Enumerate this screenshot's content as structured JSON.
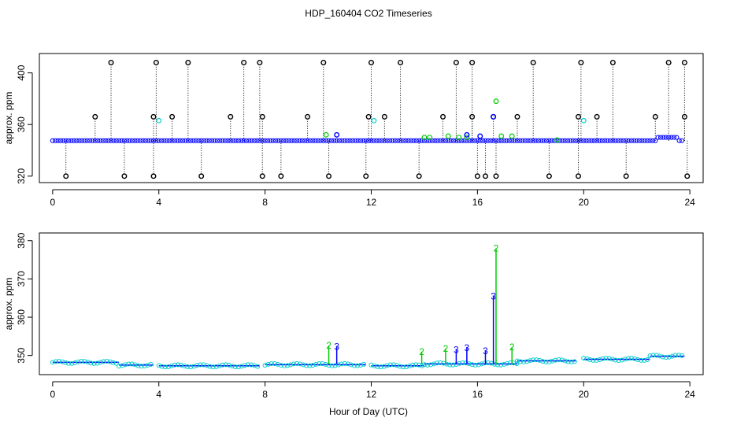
{
  "title": "HDP_160404  CO2 Timeseries",
  "xlabel": "Hour of Day (UTC)",
  "colors": {
    "black": "#000000",
    "blue": "#0000ff",
    "green": "#00cc00",
    "cyan": "#00cccc"
  },
  "chart_data": [
    {
      "type": "scatter",
      "panel": "top",
      "ylabel": "approx. ppm",
      "xlim": [
        -0.5,
        24.5
      ],
      "ylim": [
        315,
        415
      ],
      "x_ticks": [
        "0",
        "4",
        "8",
        "12",
        "16",
        "20",
        "24"
      ],
      "y_ticks": [
        "320",
        "360",
        "400"
      ],
      "base_series": {
        "name": "",
        "color": "#0000ff",
        "x_start": 0.0,
        "x_end": 23.8,
        "value": 347.5
      },
      "high_spikes": [
        {
          "x": 2.2,
          "y": 408
        },
        {
          "x": 3.9,
          "y": 408
        },
        {
          "x": 5.1,
          "y": 408
        },
        {
          "x": 7.2,
          "y": 408
        },
        {
          "x": 7.8,
          "y": 408
        },
        {
          "x": 10.2,
          "y": 408
        },
        {
          "x": 12.0,
          "y": 408
        },
        {
          "x": 13.1,
          "y": 408
        },
        {
          "x": 15.2,
          "y": 408
        },
        {
          "x": 15.8,
          "y": 408
        },
        {
          "x": 18.1,
          "y": 408
        },
        {
          "x": 19.9,
          "y": 408
        },
        {
          "x": 21.1,
          "y": 408
        },
        {
          "x": 23.2,
          "y": 408
        },
        {
          "x": 23.8,
          "y": 408
        }
      ],
      "mid_spikes": [
        {
          "x": 1.6,
          "y": 366
        },
        {
          "x": 3.8,
          "y": 366
        },
        {
          "x": 4.5,
          "y": 366
        },
        {
          "x": 6.7,
          "y": 366
        },
        {
          "x": 7.9,
          "y": 366
        },
        {
          "x": 9.6,
          "y": 366
        },
        {
          "x": 11.9,
          "y": 366
        },
        {
          "x": 12.5,
          "y": 366
        },
        {
          "x": 14.7,
          "y": 366
        },
        {
          "x": 15.8,
          "y": 366
        },
        {
          "x": 16.6,
          "y": 366
        },
        {
          "x": 17.5,
          "y": 366
        },
        {
          "x": 19.8,
          "y": 366
        },
        {
          "x": 20.5,
          "y": 366
        },
        {
          "x": 22.7,
          "y": 366
        },
        {
          "x": 23.8,
          "y": 366
        }
      ],
      "low_spikes": [
        {
          "x": 0.5,
          "y": 320
        },
        {
          "x": 2.7,
          "y": 320
        },
        {
          "x": 3.8,
          "y": 320
        },
        {
          "x": 5.6,
          "y": 320
        },
        {
          "x": 7.9,
          "y": 320
        },
        {
          "x": 8.6,
          "y": 320
        },
        {
          "x": 10.4,
          "y": 320
        },
        {
          "x": 11.8,
          "y": 320
        },
        {
          "x": 13.8,
          "y": 320
        },
        {
          "x": 16.0,
          "y": 320
        },
        {
          "x": 16.3,
          "y": 320
        },
        {
          "x": 16.7,
          "y": 320
        },
        {
          "x": 18.7,
          "y": 320
        },
        {
          "x": 19.8,
          "y": 320
        },
        {
          "x": 21.6,
          "y": 320
        },
        {
          "x": 23.9,
          "y": 320
        }
      ],
      "green_points": [
        {
          "x": 10.3,
          "y": 352
        },
        {
          "x": 14.0,
          "y": 350
        },
        {
          "x": 14.2,
          "y": 350
        },
        {
          "x": 14.9,
          "y": 351
        },
        {
          "x": 15.3,
          "y": 350
        },
        {
          "x": 15.6,
          "y": 350
        },
        {
          "x": 16.7,
          "y": 378
        },
        {
          "x": 16.9,
          "y": 351
        },
        {
          "x": 17.3,
          "y": 351
        },
        {
          "x": 19.0,
          "y": 348
        }
      ],
      "cyan_points": [
        {
          "x": 4.0,
          "y": 363
        },
        {
          "x": 12.1,
          "y": 363
        },
        {
          "x": 20.0,
          "y": 363
        }
      ],
      "blue_points": [
        {
          "x": 10.7,
          "y": 352
        },
        {
          "x": 16.6,
          "y": 366
        },
        {
          "x": 15.6,
          "y": 352
        },
        {
          "x": 16.1,
          "y": 351
        }
      ]
    },
    {
      "type": "line",
      "panel": "bottom",
      "ylabel": "approx. ppm",
      "xlim": [
        -0.5,
        24.5
      ],
      "ylim": [
        345,
        382
      ],
      "x_ticks": [
        "0",
        "4",
        "8",
        "12",
        "16",
        "20",
        "24"
      ],
      "y_ticks": [
        "350",
        "360",
        "370",
        "380"
      ],
      "segments": [
        {
          "x0": 0.0,
          "x1": 2.5,
          "y": 348.2
        },
        {
          "x0": 2.5,
          "x1": 3.8,
          "y": 347.5
        },
        {
          "x0": 4.0,
          "x1": 7.8,
          "y": 347.3
        },
        {
          "x0": 8.0,
          "x1": 11.8,
          "y": 347.6
        },
        {
          "x0": 12.0,
          "x1": 14.0,
          "y": 347.3
        },
        {
          "x0": 14.0,
          "x1": 17.5,
          "y": 347.8
        },
        {
          "x0": 17.5,
          "x1": 19.7,
          "y": 348.6
        },
        {
          "x0": 20.0,
          "x1": 22.5,
          "y": 349.0
        },
        {
          "x0": 22.5,
          "x1": 23.8,
          "y": 349.8
        }
      ],
      "peaks": [
        {
          "x": 10.4,
          "y": 352.6,
          "label": "2",
          "color": "#00cc00"
        },
        {
          "x": 10.7,
          "y": 352.3,
          "label": "3",
          "color": "#0000ff"
        },
        {
          "x": 13.9,
          "y": 351.0,
          "label": "2",
          "color": "#00cc00"
        },
        {
          "x": 14.8,
          "y": 351.8,
          "label": "2",
          "color": "#00cc00"
        },
        {
          "x": 15.2,
          "y": 351.5,
          "label": "3",
          "color": "#0000ff"
        },
        {
          "x": 15.6,
          "y": 352.0,
          "label": "3",
          "color": "#0000ff"
        },
        {
          "x": 16.3,
          "y": 351.2,
          "label": "3",
          "color": "#0000ff"
        },
        {
          "x": 16.6,
          "y": 365.5,
          "label": "3",
          "color": "#0000ff"
        },
        {
          "x": 16.7,
          "y": 378.0,
          "label": "2",
          "color": "#00cc00"
        },
        {
          "x": 17.3,
          "y": 352.2,
          "label": "2",
          "color": "#00cc00"
        }
      ]
    }
  ]
}
